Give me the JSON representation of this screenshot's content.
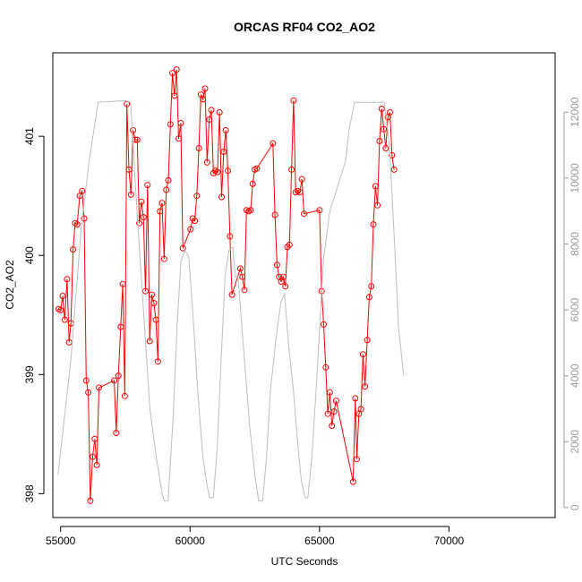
{
  "chart_data": {
    "type": "line",
    "title": "ORCAS RF04 CO2_AO2",
    "xlabel": "UTC Seconds",
    "ylabel": "CO2_AO2",
    "xlim": [
      54700,
      74100
    ],
    "ylim": [
      397.8,
      401.7
    ],
    "y2lim": [
      -300,
      13800
    ],
    "x_ticks": [
      "55000",
      "60000",
      "65000",
      "70000"
    ],
    "y_ticks": [
      "398",
      "399",
      "400",
      "401"
    ],
    "y2_ticks": [
      "0",
      "2000",
      "4000",
      "6000",
      "8000",
      "10000",
      "12000"
    ],
    "colors": {
      "co2": "#ff0000",
      "altitude": "#bebebe",
      "axis": "#000000",
      "axis_right": "#9a9a9a"
    },
    "series": [
      {
        "color": "#ff0000",
        "markers": "open-circle",
        "axis": "left",
        "points": [
          [
            54920,
            399.55
          ],
          [
            55000,
            399.54
          ],
          [
            55080,
            399.66
          ],
          [
            55160,
            399.46
          ],
          [
            55250,
            399.8
          ],
          [
            55330,
            399.27
          ],
          [
            55400,
            399.43
          ],
          [
            55480,
            400.05
          ],
          [
            55560,
            400.27
          ],
          [
            55640,
            400.26
          ],
          [
            55740,
            400.5
          ],
          [
            55830,
            400.54
          ],
          [
            55910,
            400.31
          ],
          [
            55990,
            398.95
          ],
          [
            56070,
            398.85
          ],
          [
            56150,
            397.94
          ],
          [
            56240,
            398.31
          ],
          [
            56320,
            398.46
          ],
          [
            56400,
            398.24
          ],
          [
            56480,
            398.89
          ],
          [
            57070,
            398.95
          ],
          [
            57150,
            398.51
          ],
          [
            57230,
            398.99
          ],
          [
            57320,
            399.4
          ],
          [
            57400,
            399.76
          ],
          [
            57480,
            398.82
          ],
          [
            57560,
            401.27
          ],
          [
            57640,
            400.72
          ],
          [
            57720,
            400.51
          ],
          [
            57800,
            401.05
          ],
          [
            57880,
            400.97
          ],
          [
            57960,
            400.97
          ],
          [
            58040,
            400.27
          ],
          [
            58120,
            400.45
          ],
          [
            58200,
            400.32
          ],
          [
            58280,
            399.7
          ],
          [
            58360,
            400.59
          ],
          [
            58440,
            399.28
          ],
          [
            58520,
            399.67
          ],
          [
            58600,
            399.6
          ],
          [
            58680,
            399.46
          ],
          [
            58760,
            399.11
          ],
          [
            58840,
            400.37
          ],
          [
            58920,
            400.44
          ],
          [
            59000,
            399.97
          ],
          [
            59080,
            400.55
          ],
          [
            59160,
            400.63
          ],
          [
            59240,
            401.1
          ],
          [
            59320,
            401.53
          ],
          [
            59400,
            401.34
          ],
          [
            59480,
            401.56
          ],
          [
            59560,
            400.98
          ],
          [
            59640,
            401.11
          ],
          [
            59720,
            400.06
          ],
          [
            60020,
            400.22
          ],
          [
            60100,
            400.31
          ],
          [
            60180,
            400.29
          ],
          [
            60260,
            400.5
          ],
          [
            60340,
            400.9
          ],
          [
            60420,
            401.35
          ],
          [
            60500,
            401.31
          ],
          [
            60580,
            401.4
          ],
          [
            60660,
            400.78
          ],
          [
            60740,
            401.14
          ],
          [
            60820,
            401.22
          ],
          [
            60900,
            400.69
          ],
          [
            60980,
            400.71
          ],
          [
            61060,
            400.7
          ],
          [
            61140,
            401.2
          ],
          [
            61220,
            400.49
          ],
          [
            61300,
            400.87
          ],
          [
            61380,
            401.05
          ],
          [
            61460,
            400.71
          ],
          [
            61540,
            400.16
          ],
          [
            61620,
            399.67
          ],
          [
            61940,
            399.89
          ],
          [
            62020,
            399.82
          ],
          [
            62100,
            399.71
          ],
          [
            62180,
            400.38
          ],
          [
            62260,
            400.37
          ],
          [
            62340,
            400.38
          ],
          [
            62420,
            400.6
          ],
          [
            62500,
            400.72
          ],
          [
            62580,
            400.73
          ],
          [
            63200,
            400.94
          ],
          [
            63280,
            400.34
          ],
          [
            63360,
            399.92
          ],
          [
            63440,
            399.82
          ],
          [
            63520,
            399.78
          ],
          [
            63600,
            399.82
          ],
          [
            63680,
            399.74
          ],
          [
            63760,
            400.07
          ],
          [
            63840,
            400.09
          ],
          [
            63920,
            400.72
          ],
          [
            64000,
            401.3
          ],
          [
            64080,
            400.53
          ],
          [
            64160,
            400.54
          ],
          [
            64240,
            400.53
          ],
          [
            64320,
            400.64
          ],
          [
            64400,
            400.35
          ],
          [
            65000,
            400.38
          ],
          [
            65080,
            399.7
          ],
          [
            65160,
            399.42
          ],
          [
            65240,
            399.06
          ],
          [
            65320,
            398.67
          ],
          [
            65400,
            398.85
          ],
          [
            65480,
            398.57
          ],
          [
            65560,
            398.69
          ],
          [
            65640,
            398.78
          ],
          [
            66300,
            398.1
          ],
          [
            66380,
            398.8
          ],
          [
            66440,
            398.29
          ],
          [
            66520,
            398.67
          ],
          [
            66600,
            398.71
          ],
          [
            66680,
            399.17
          ],
          [
            66760,
            398.9
          ],
          [
            66840,
            399.29
          ],
          [
            66920,
            399.65
          ],
          [
            67000,
            399.74
          ],
          [
            67080,
            400.26
          ],
          [
            67160,
            400.58
          ],
          [
            67240,
            400.42
          ],
          [
            67320,
            400.96
          ],
          [
            67400,
            401.23
          ],
          [
            67480,
            401.06
          ],
          [
            67560,
            400.9
          ],
          [
            67640,
            401.16
          ],
          [
            67720,
            401.2
          ],
          [
            67800,
            400.84
          ],
          [
            67880,
            400.72
          ]
        ]
      },
      {
        "color": "#bebebe",
        "markers": "none",
        "axis": "right",
        "points": [
          [
            54900,
            1000
          ],
          [
            55400,
            4500
          ],
          [
            55800,
            8500
          ],
          [
            56100,
            10500
          ],
          [
            56450,
            12300
          ],
          [
            57500,
            12350
          ],
          [
            57700,
            12300
          ],
          [
            57950,
            9000
          ],
          [
            58200,
            6000
          ],
          [
            58450,
            3000
          ],
          [
            58700,
            1500
          ],
          [
            58900,
            500
          ],
          [
            59000,
            200
          ],
          [
            59150,
            200
          ],
          [
            59350,
            2800
          ],
          [
            59500,
            5500
          ],
          [
            59650,
            7500
          ],
          [
            59800,
            7800
          ],
          [
            59950,
            7600
          ],
          [
            60100,
            6000
          ],
          [
            60300,
            3500
          ],
          [
            60500,
            1500
          ],
          [
            60650,
            700
          ],
          [
            60750,
            300
          ],
          [
            60900,
            300
          ],
          [
            61050,
            1800
          ],
          [
            61200,
            4500
          ],
          [
            61350,
            7000
          ],
          [
            61500,
            7800
          ],
          [
            61650,
            7900
          ],
          [
            61750,
            7000
          ],
          [
            61850,
            7000
          ],
          [
            62000,
            5500
          ],
          [
            62150,
            4000
          ],
          [
            62300,
            2500
          ],
          [
            62500,
            1000
          ],
          [
            62650,
            200
          ],
          [
            62800,
            200
          ],
          [
            62950,
            1500
          ],
          [
            63100,
            3500
          ],
          [
            63300,
            5000
          ],
          [
            63500,
            6200
          ],
          [
            63650,
            6500
          ],
          [
            63800,
            5000
          ],
          [
            64000,
            3500
          ],
          [
            64150,
            2000
          ],
          [
            64300,
            800
          ],
          [
            64450,
            300
          ],
          [
            64550,
            300
          ],
          [
            64700,
            1500
          ],
          [
            64900,
            4000
          ],
          [
            65150,
            7500
          ],
          [
            65400,
            9000
          ],
          [
            65600,
            9500
          ],
          [
            65800,
            10000
          ],
          [
            66000,
            10500
          ],
          [
            66150,
            11500
          ],
          [
            66350,
            12300
          ],
          [
            66700,
            12300
          ],
          [
            67200,
            12300
          ],
          [
            67500,
            12300
          ],
          [
            67700,
            11000
          ],
          [
            67900,
            8000
          ],
          [
            68050,
            5500
          ],
          [
            68250,
            4000
          ]
        ]
      }
    ]
  }
}
